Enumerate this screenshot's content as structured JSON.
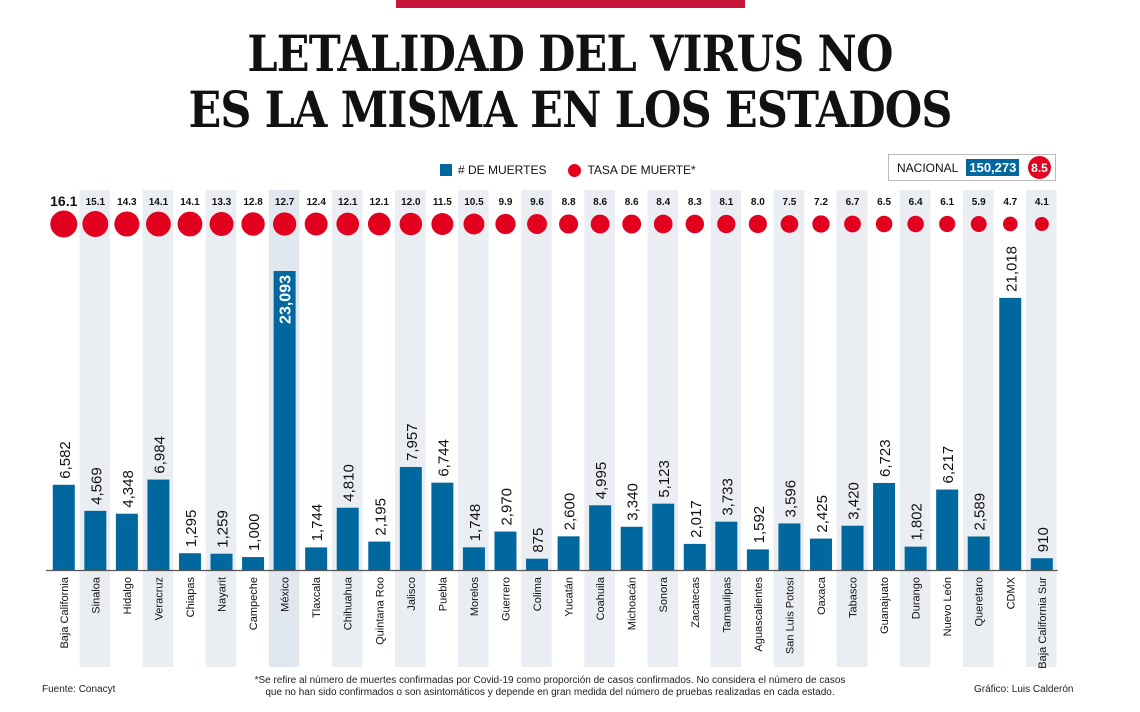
{
  "header": {
    "title_line1": "LETALIDAD DEL VIRUS NO",
    "title_line2": "ES LA MISMA EN LOS ESTADOS",
    "accent_color": "#c8163b"
  },
  "legend": {
    "deaths_label": "# DE MUERTES",
    "rate_label": "TASA DE MUERTE*"
  },
  "nacional": {
    "label": "NACIONAL",
    "deaths": "150,273",
    "rate": "8.5"
  },
  "footer": {
    "source": "Fuente: Conacyt",
    "note_line1": "*Se refire al número de muertes confirmadas por Covid-19 como proporción de casos confirmados. No considera el número de casos",
    "note_line2": "que no han sido confirmados o son asintomáticos y depende en gran medida del número de pruebas realizadas en cada estado.",
    "credit": "Gráfico: Luis Calderón"
  },
  "chart_data": {
    "type": "bar",
    "title": "LETALIDAD DEL VIRUS NO ES LA MISMA EN LOS ESTADOS",
    "xlabel": "",
    "ylabel": "",
    "colors": {
      "bars": "#01689f",
      "dots": "#e3001f",
      "band": "#eaeef3",
      "band_highlight": "#e0e7ee"
    },
    "categories": [
      "Baja California",
      "Sinaloa",
      "Hidalgo",
      "Veracruz",
      "Chiapas",
      "Nayarit",
      "Campeche",
      "México",
      "Tlaxcala",
      "Chihuahua",
      "Quintana Roo",
      "Jalisco",
      "Puebla",
      "Morelos",
      "Guerrero",
      "Colima",
      "Yucatán",
      "Coahuila",
      "Michoacán",
      "Sonora",
      "Zacatecas",
      "Tamaulipas",
      "Aguascalientes",
      "San Luis Potosí",
      "Oaxaca",
      "Tabasco",
      "Guanajuato",
      "Durango",
      "Nuevo León",
      "Queretaro",
      "CDMX",
      "Baja California Sur"
    ],
    "series": [
      {
        "name": "# DE MUERTES",
        "kind": "bar",
        "values": [
          6582,
          4569,
          4348,
          6984,
          1295,
          1259,
          1000,
          23093,
          1744,
          4810,
          2195,
          7957,
          6744,
          1748,
          2970,
          875,
          2600,
          4995,
          3340,
          5123,
          2017,
          3733,
          1592,
          3596,
          2425,
          3420,
          6723,
          1802,
          6217,
          2589,
          21018,
          910
        ]
      },
      {
        "name": "TASA DE MUERTE*",
        "kind": "dot",
        "values": [
          16.1,
          15.1,
          14.3,
          14.1,
          14.1,
          13.3,
          12.8,
          12.7,
          12.4,
          12.1,
          12.1,
          12.0,
          11.5,
          10.5,
          9.9,
          9.6,
          8.8,
          8.6,
          8.6,
          8.4,
          8.3,
          8.1,
          8.0,
          7.5,
          7.2,
          6.7,
          6.5,
          6.4,
          6.1,
          5.9,
          4.7,
          4.1
        ]
      }
    ],
    "bar_labels": [
      "6,582",
      "4,569",
      "4,348",
      "6,984",
      "1,295",
      "1,259",
      "1,000",
      "23,093",
      "1,744",
      "4,810",
      "2,195",
      "7,957",
      "6,744",
      "1,748",
      "2,970",
      "875",
      "2,600",
      "4,995",
      "3,340",
      "5,123",
      "2,017",
      "3,733",
      "1,592",
      "3,596",
      "2,425",
      "3,420",
      "6,723",
      "1,802",
      "6,217",
      "2,589",
      "21,018",
      "910"
    ],
    "rate_labels": [
      "16.1",
      "15.1",
      "14.3",
      "14.1",
      "14.1",
      "13.3",
      "12.8",
      "12.7",
      "12.4",
      "12.1",
      "12.1",
      "12.0",
      "11.5",
      "10.5",
      "9.9",
      "9.6",
      "8.8",
      "8.6",
      "8.6",
      "8.4",
      "8.3",
      "8.1",
      "8.0",
      "7.5",
      "7.2",
      "6.7",
      "6.5",
      "6.4",
      "6.1",
      "5.9",
      "4.7",
      "4.1"
    ],
    "ylim": [
      0,
      23093
    ],
    "highlight_category": "México",
    "grid": false,
    "legend_position": "top-center"
  }
}
